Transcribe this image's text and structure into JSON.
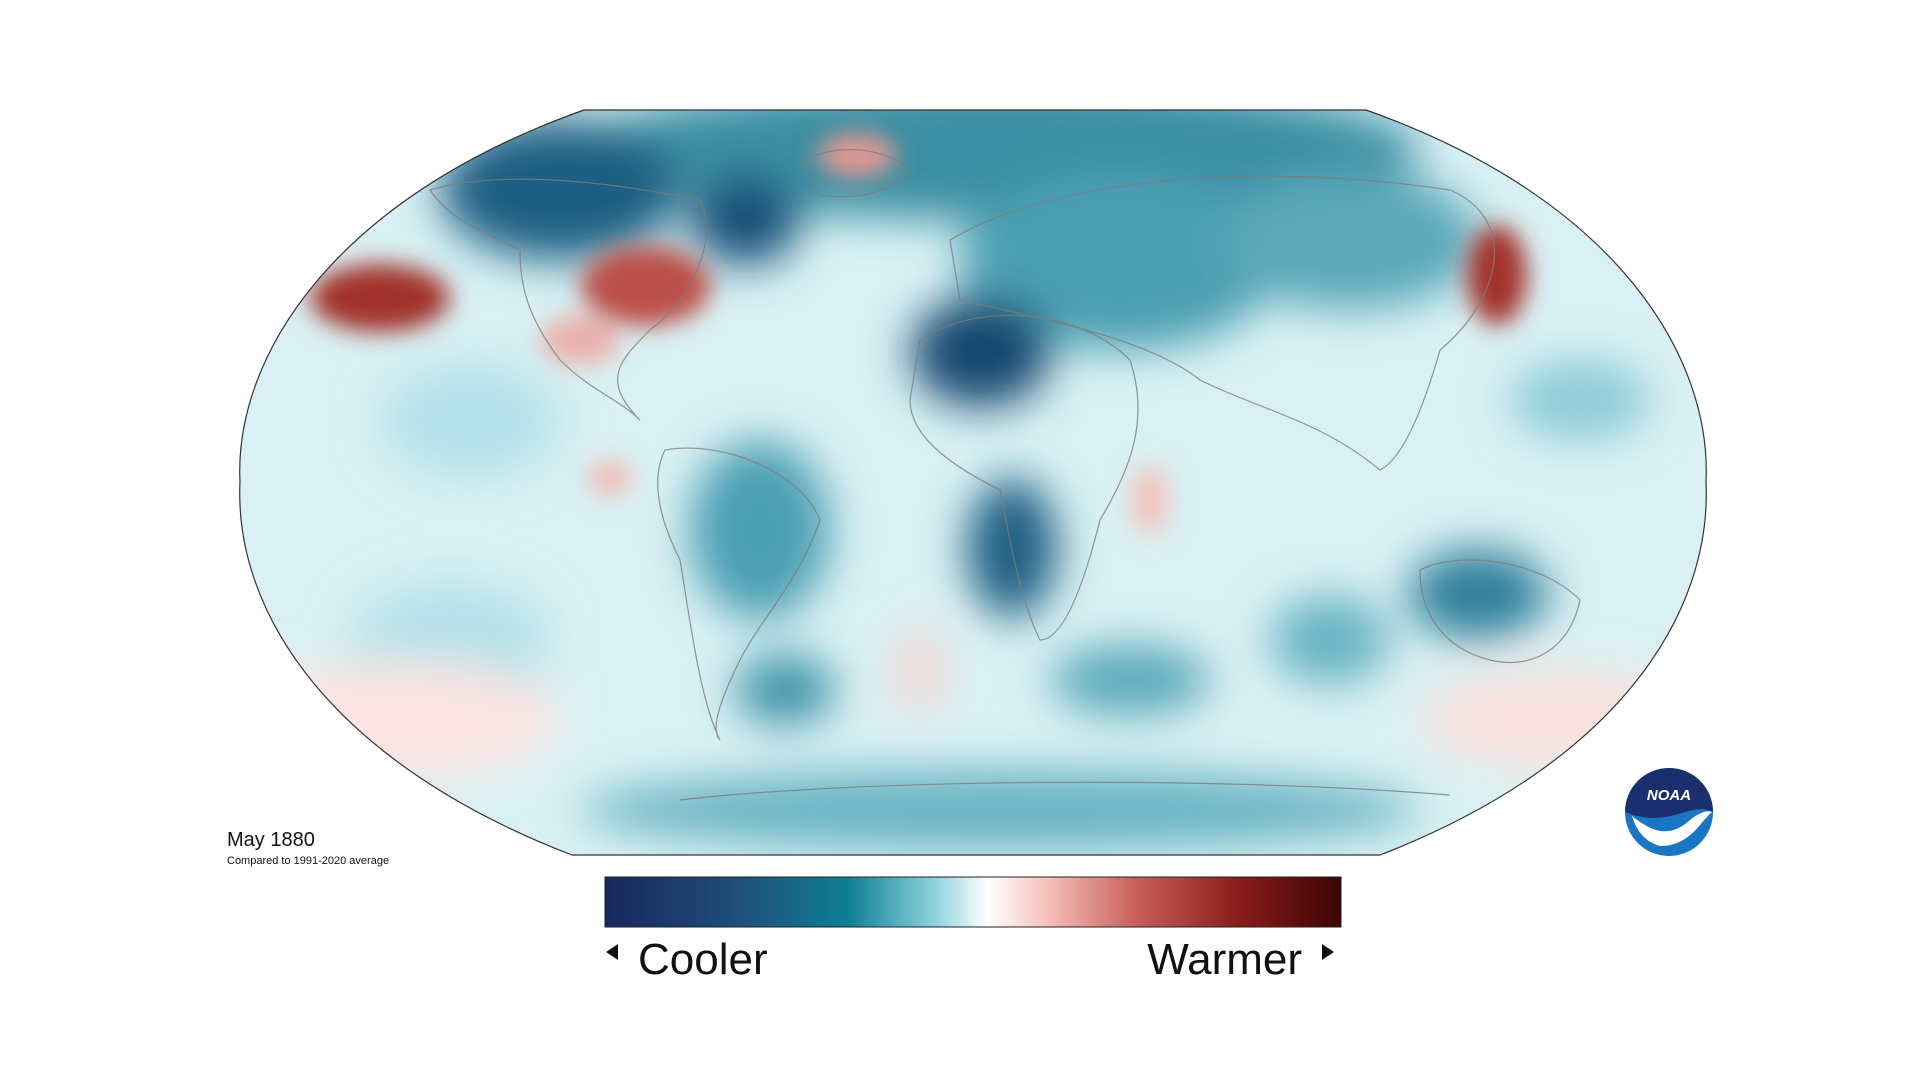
{
  "title": "May 1880",
  "subtitle": "Compared to 1991-2020 average",
  "legend": {
    "low": "Cooler",
    "high": "Warmer"
  },
  "logo": "NOAA"
}
